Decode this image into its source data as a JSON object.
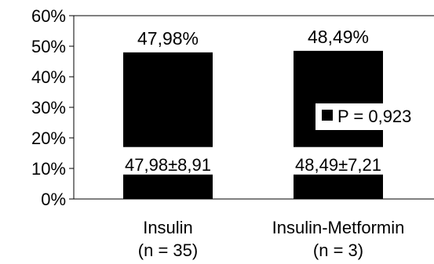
{
  "chart_data": {
    "type": "bar",
    "categories": [
      "Insulin",
      "Insulin-Metformin"
    ],
    "category_subtitles": [
      "(n = 35)",
      "(n = 3)"
    ],
    "values": [
      47.98,
      48.49
    ],
    "value_labels": [
      "47,98%",
      "48,49%"
    ],
    "inner_labels": [
      "47,98±8,91",
      "48,49±7,21"
    ],
    "ylim": [
      0,
      60
    ],
    "yticks": [
      0,
      10,
      20,
      30,
      40,
      50,
      60
    ],
    "ytick_labels": [
      "0%",
      "10%",
      "20%",
      "30%",
      "40%",
      "50%",
      "60%"
    ],
    "grid": false,
    "legend": {
      "placement": "right",
      "entries": [
        {
          "label": "P = 0,923",
          "color": "#000000"
        }
      ]
    },
    "bar_color": "#000000",
    "title": "",
    "xlabel": "",
    "ylabel": ""
  }
}
